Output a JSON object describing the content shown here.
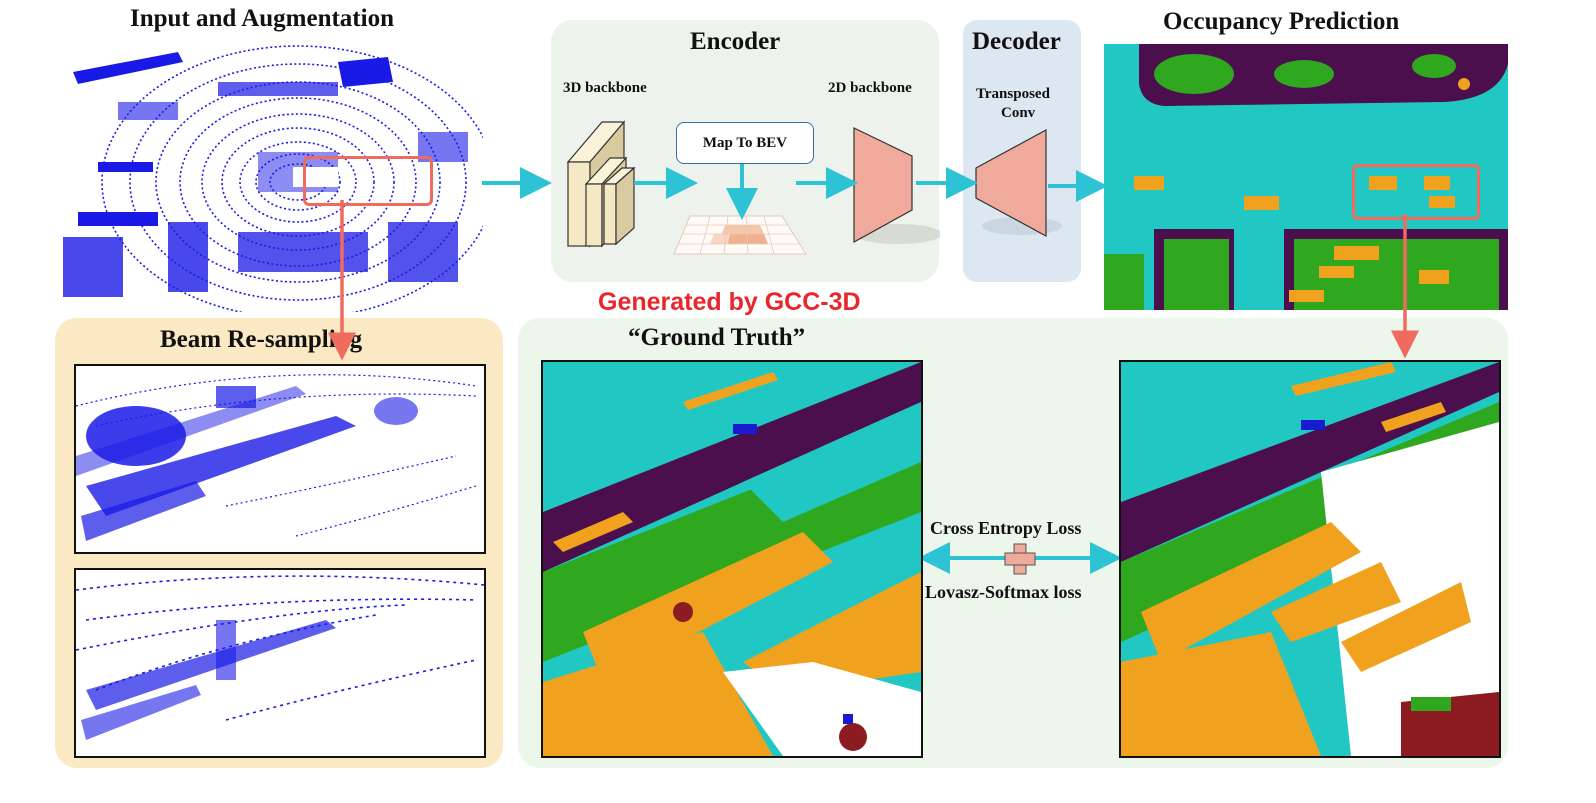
{
  "input": {
    "title": "Input and Augmentation"
  },
  "encoder": {
    "title": "Encoder",
    "backbone3d": "3D backbone",
    "map_to_bev": "Map To BEV",
    "backbone2d": "2D backbone"
  },
  "decoder": {
    "title": "Decoder",
    "conv_line1": "Transposed",
    "conv_line2": "Conv"
  },
  "occupancy": {
    "title": "Occupancy Prediction"
  },
  "beam": {
    "title": "Beam Re-sampling"
  },
  "gcc": {
    "label": "Generated by GCC-3D"
  },
  "ground_truth": {
    "title": "“Ground Truth”"
  },
  "loss": {
    "ce": "Cross Entropy Loss",
    "lovasz": "Lovasz-Softmax loss"
  },
  "colors": {
    "arrow": "#2ec3d4",
    "highlight": "#f06a5e",
    "gcc_text": "#e8262b",
    "encoder_bg": "#eef2ec",
    "decoder_bg": "#dde7f2",
    "beam_bg": "#fbe9c4",
    "gt_bg": "#edf6ea",
    "point_cloud": "#1a1ae6",
    "seg_cyan": "#21c8c3",
    "seg_orange": "#f0a21e",
    "seg_green": "#2fa71e",
    "seg_purple": "#4b0f4e",
    "seg_maroon": "#8c1c22",
    "trapezoid": "#efaa9c"
  }
}
